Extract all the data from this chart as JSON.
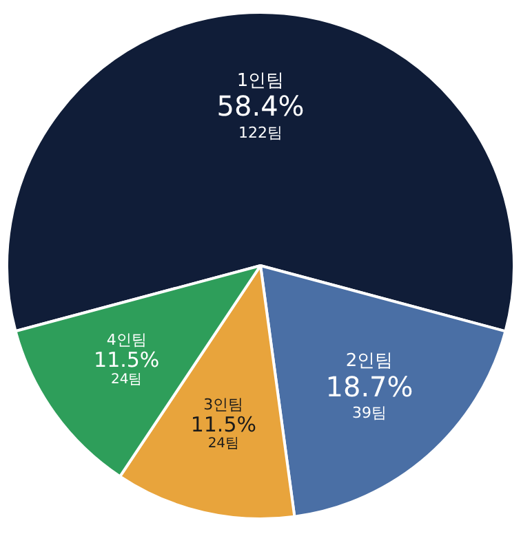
{
  "chart_data": {
    "type": "pie",
    "categories": [
      "1인팀",
      "2인팀",
      "3인팀",
      "4인팀"
    ],
    "values": [
      58.4,
      18.7,
      11.5,
      11.5
    ],
    "colors": [
      "#101d38",
      "#4a6fa5",
      "#e8a43c",
      "#2e9e5a"
    ],
    "value_labels": [
      "58.4%",
      "18.7%",
      "11.5%",
      "11.5%"
    ],
    "annotations": [
      "122팀",
      "39팀",
      "24팀",
      "24팀"
    ],
    "legend": false
  }
}
